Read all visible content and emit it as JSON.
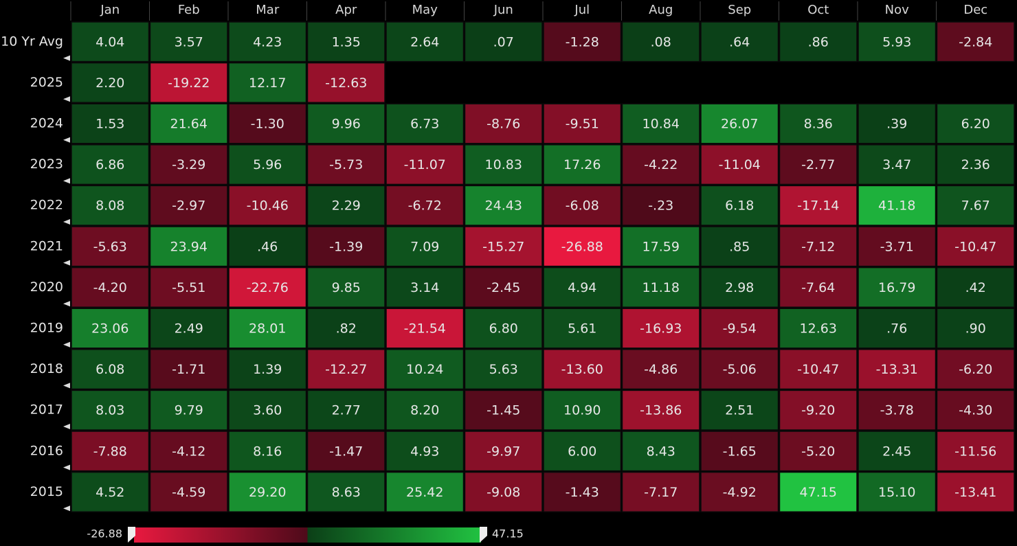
{
  "chart_data": {
    "type": "heatmap",
    "columns": [
      "Jan",
      "Feb",
      "Mar",
      "Apr",
      "May",
      "Jun",
      "Jul",
      "Aug",
      "Sep",
      "Oct",
      "Nov",
      "Dec"
    ],
    "rows": [
      "10 Yr Avg",
      "2025",
      "2024",
      "2023",
      "2022",
      "2021",
      "2020",
      "2019",
      "2018",
      "2017",
      "2016",
      "2015"
    ],
    "values": [
      [
        4.04,
        3.57,
        4.23,
        1.35,
        2.64,
        0.07,
        -1.28,
        0.08,
        0.64,
        0.86,
        5.93,
        -2.84
      ],
      [
        2.2,
        -19.22,
        12.17,
        -12.63,
        null,
        null,
        null,
        null,
        null,
        null,
        null,
        null
      ],
      [
        1.53,
        21.64,
        -1.3,
        9.96,
        6.73,
        -8.76,
        -9.51,
        10.84,
        26.07,
        8.36,
        0.39,
        6.2
      ],
      [
        6.86,
        -3.29,
        5.96,
        -5.73,
        -11.07,
        10.83,
        17.26,
        -4.22,
        -11.04,
        -2.77,
        3.47,
        2.36
      ],
      [
        8.08,
        -2.97,
        -10.46,
        2.29,
        -6.72,
        24.43,
        -6.08,
        -0.23,
        6.18,
        -17.14,
        41.18,
        7.67
      ],
      [
        -5.63,
        23.94,
        0.46,
        -1.39,
        7.09,
        -15.27,
        -26.88,
        17.59,
        0.85,
        -7.12,
        -3.71,
        -10.47
      ],
      [
        -4.2,
        -5.51,
        -22.76,
        9.85,
        3.14,
        -2.45,
        4.94,
        11.18,
        2.98,
        -7.64,
        16.79,
        0.42
      ],
      [
        23.06,
        2.49,
        28.01,
        0.82,
        -21.54,
        6.8,
        5.61,
        -16.93,
        -9.54,
        12.63,
        0.76,
        0.9
      ],
      [
        6.08,
        -1.71,
        1.39,
        -12.27,
        10.24,
        5.63,
        -13.6,
        -4.86,
        -5.06,
        -10.47,
        -13.31,
        -6.2
      ],
      [
        8.03,
        9.79,
        3.6,
        2.77,
        8.2,
        -1.45,
        10.9,
        -13.86,
        2.51,
        -9.2,
        -3.78,
        -4.3
      ],
      [
        -7.88,
        -4.12,
        8.16,
        -1.47,
        4.93,
        -9.97,
        6.0,
        8.43,
        -1.65,
        -5.2,
        2.45,
        -11.56
      ],
      [
        4.52,
        -4.59,
        29.2,
        8.63,
        25.42,
        -9.08,
        -1.43,
        -7.17,
        -4.92,
        47.15,
        15.1,
        -13.41
      ]
    ],
    "value_labels": [
      [
        "4.04",
        "3.57",
        "4.23",
        "1.35",
        "2.64",
        ".07",
        "-1.28",
        ".08",
        ".64",
        ".86",
        "5.93",
        "-2.84"
      ],
      [
        "2.20",
        "-19.22",
        "12.17",
        "-12.63",
        null,
        null,
        null,
        null,
        null,
        null,
        null,
        null
      ],
      [
        "1.53",
        "21.64",
        "-1.30",
        "9.96",
        "6.73",
        "-8.76",
        "-9.51",
        "10.84",
        "26.07",
        "8.36",
        ".39",
        "6.20"
      ],
      [
        "6.86",
        "-3.29",
        "5.96",
        "-5.73",
        "-11.07",
        "10.83",
        "17.26",
        "-4.22",
        "-11.04",
        "-2.77",
        "3.47",
        "2.36"
      ],
      [
        "8.08",
        "-2.97",
        "-10.46",
        "2.29",
        "-6.72",
        "24.43",
        "-6.08",
        "-.23",
        "6.18",
        "-17.14",
        "41.18",
        "7.67"
      ],
      [
        "-5.63",
        "23.94",
        ".46",
        "-1.39",
        "7.09",
        "-15.27",
        "-26.88",
        "17.59",
        ".85",
        "-7.12",
        "-3.71",
        "-10.47"
      ],
      [
        "-4.20",
        "-5.51",
        "-22.76",
        "9.85",
        "3.14",
        "-2.45",
        "4.94",
        "11.18",
        "2.98",
        "-7.64",
        "16.79",
        ".42"
      ],
      [
        "23.06",
        "2.49",
        "28.01",
        ".82",
        "-21.54",
        "6.80",
        "5.61",
        "-16.93",
        "-9.54",
        "12.63",
        ".76",
        ".90"
      ],
      [
        "6.08",
        "-1.71",
        "1.39",
        "-12.27",
        "10.24",
        "5.63",
        "-13.60",
        "-4.86",
        "-5.06",
        "-10.47",
        "-13.31",
        "-6.20"
      ],
      [
        "8.03",
        "9.79",
        "3.60",
        "2.77",
        "8.20",
        "-1.45",
        "10.90",
        "-13.86",
        "2.51",
        "-9.20",
        "-3.78",
        "-4.30"
      ],
      [
        "-7.88",
        "-4.12",
        "8.16",
        "-1.47",
        "4.93",
        "-9.97",
        "6.00",
        "8.43",
        "-1.65",
        "-5.20",
        "2.45",
        "-11.56"
      ],
      [
        "4.52",
        "-4.59",
        "29.20",
        "8.63",
        "25.42",
        "-9.08",
        "-1.43",
        "-7.17",
        "-4.92",
        "47.15",
        "15.10",
        "-13.41"
      ]
    ],
    "clim": [
      -26.88,
      47.15
    ]
  }
}
